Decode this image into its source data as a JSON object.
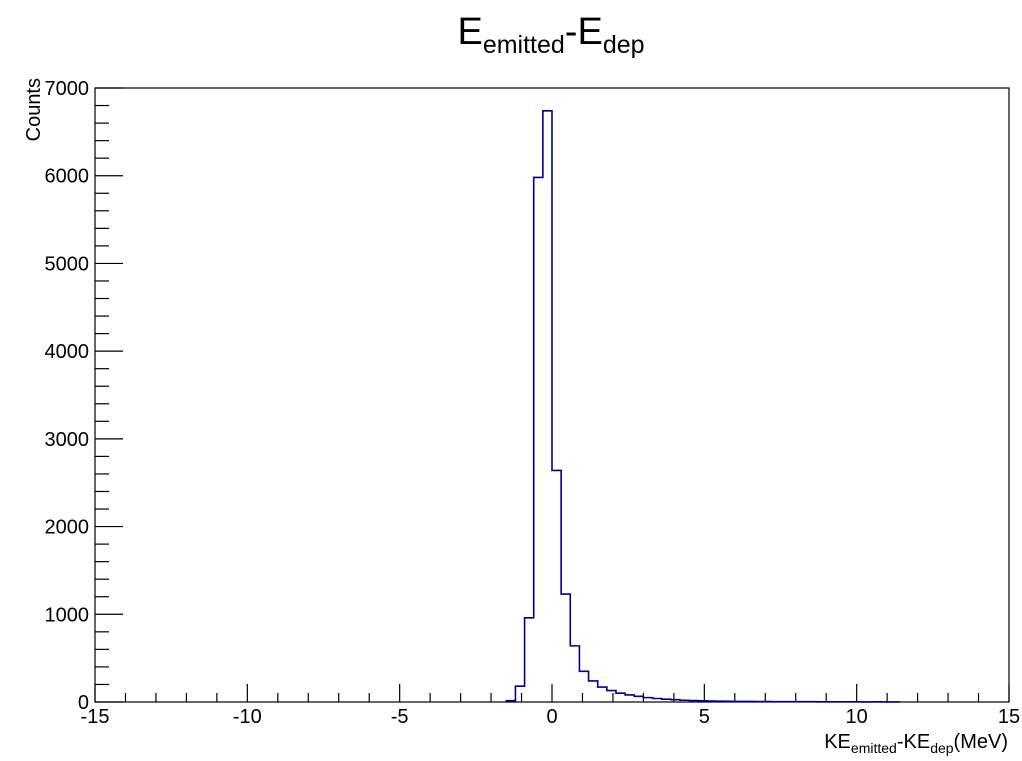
{
  "chart_data": {
    "type": "histogram",
    "title": {
      "base1": "E",
      "sub1": "emitted",
      "sep": "-",
      "base2": "E",
      "sub2": "dep"
    },
    "xlabel": {
      "base1": "KE",
      "sub1": "emitted",
      "sep": "-",
      "base2": "KE",
      "sub2": "dep",
      "unit": "(MeV)"
    },
    "ylabel": "Counts",
    "xlim": [
      -15,
      15
    ],
    "ylim": [
      0,
      7000
    ],
    "xticks": [
      -15,
      -10,
      -5,
      0,
      5,
      10,
      15
    ],
    "xtick_labels": [
      "-15",
      "-10",
      "-5",
      "0",
      "5",
      "10",
      "15"
    ],
    "yticks": [
      0,
      1000,
      2000,
      3000,
      4000,
      5000,
      6000,
      7000
    ],
    "ytick_labels": [
      "0",
      "1000",
      "2000",
      "3000",
      "4000",
      "5000",
      "6000",
      "7000"
    ],
    "grid": false,
    "line_color": "#00008b",
    "bin_edges": [
      -1.5,
      -1.2,
      -0.9,
      -0.6,
      -0.3,
      0.0,
      0.3,
      0.6,
      0.9,
      1.2,
      1.5,
      1.8,
      2.1,
      2.4,
      2.7,
      3.0,
      3.3,
      3.6,
      3.9,
      4.2,
      4.5,
      4.8,
      5.1,
      5.4,
      5.7,
      6.0,
      6.3,
      6.6,
      6.9,
      7.2,
      7.5,
      7.8,
      8.1,
      8.4,
      8.7,
      9.0,
      9.3,
      9.6,
      9.9,
      10.2,
      10.5,
      10.8,
      11.1,
      11.4
    ],
    "counts": [
      15,
      180,
      960,
      5980,
      6740,
      2640,
      1230,
      640,
      350,
      240,
      170,
      130,
      100,
      80,
      65,
      50,
      40,
      32,
      26,
      20,
      16,
      13,
      11,
      9,
      8,
      7,
      6,
      5,
      5,
      4,
      4,
      3,
      3,
      3,
      2,
      2,
      2,
      2,
      2,
      1,
      2,
      1,
      1
    ]
  }
}
